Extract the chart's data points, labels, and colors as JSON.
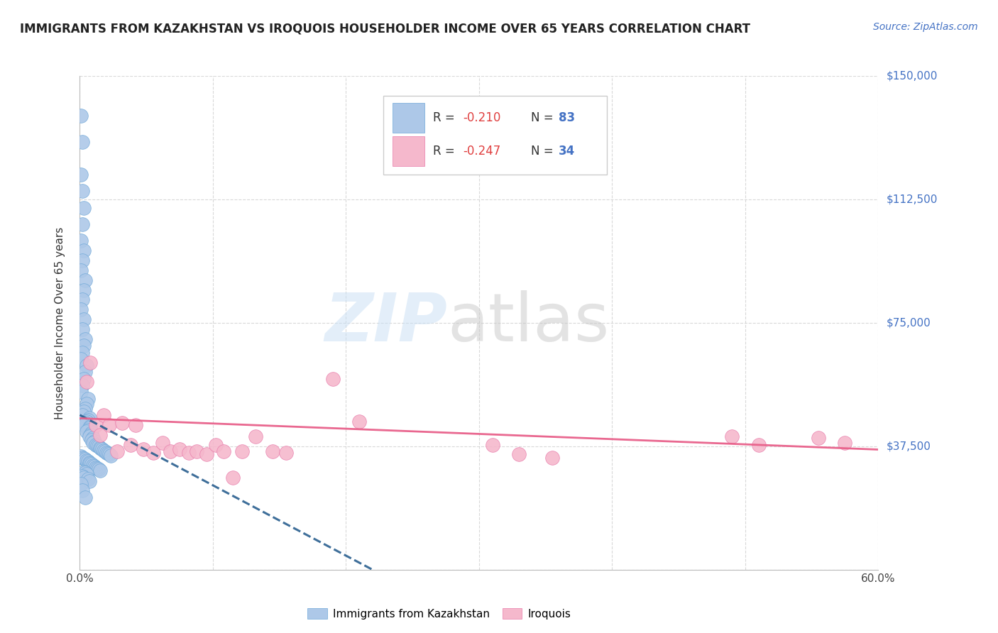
{
  "title": "IMMIGRANTS FROM KAZAKHSTAN VS IROQUOIS HOUSEHOLDER INCOME OVER 65 YEARS CORRELATION CHART",
  "source": "Source: ZipAtlas.com",
  "ylabel": "Householder Income Over 65 years",
  "xlim": [
    0.0,
    0.6
  ],
  "ylim": [
    0,
    150000
  ],
  "yticks": [
    0,
    37500,
    75000,
    112500,
    150000
  ],
  "ytick_labels": [
    "",
    "$37,500",
    "$75,000",
    "$112,500",
    "$150,000"
  ],
  "xticks": [
    0.0,
    0.1,
    0.2,
    0.3,
    0.4,
    0.5,
    0.6
  ],
  "xtick_labels": [
    "0.0%",
    "",
    "",
    "",
    "",
    "",
    "60.0%"
  ],
  "color_blue": "#adc8e8",
  "color_blue_edge": "#6fa8d8",
  "color_pink": "#f5b8cc",
  "color_pink_edge": "#e87aaa",
  "color_trendline_blue": "#2a5f8f",
  "color_trendline_pink": "#e8608a",
  "color_grid": "#d0d0d0",
  "color_title": "#222222",
  "color_source": "#4472c4",
  "color_yticklabel": "#4472c4",
  "color_axis": "#bbbbbb",
  "blue_points_x": [
    0.001,
    0.002,
    0.001,
    0.002,
    0.003,
    0.002,
    0.001,
    0.003,
    0.002,
    0.001,
    0.004,
    0.003,
    0.002,
    0.001,
    0.003,
    0.002,
    0.004,
    0.003,
    0.002,
    0.001,
    0.005,
    0.004,
    0.003,
    0.002,
    0.001,
    0.006,
    0.005,
    0.004,
    0.003,
    0.002,
    0.007,
    0.006,
    0.005,
    0.004,
    0.003,
    0.008,
    0.007,
    0.006,
    0.005,
    0.009,
    0.008,
    0.007,
    0.01,
    0.009,
    0.011,
    0.01,
    0.012,
    0.013,
    0.014,
    0.015,
    0.016,
    0.017,
    0.018,
    0.019,
    0.02,
    0.021,
    0.022,
    0.023,
    0.001,
    0.002,
    0.003,
    0.004,
    0.005,
    0.006,
    0.007,
    0.008,
    0.009,
    0.01,
    0.011,
    0.012,
    0.013,
    0.014,
    0.015,
    0.003,
    0.004,
    0.005,
    0.002,
    0.003,
    0.006,
    0.007,
    0.001,
    0.002,
    0.004
  ],
  "blue_points_y": [
    138000,
    130000,
    120000,
    115000,
    110000,
    105000,
    100000,
    97000,
    94000,
    91000,
    88000,
    85000,
    82000,
    79000,
    76000,
    73000,
    70000,
    68000,
    66000,
    64000,
    62000,
    60000,
    58000,
    56000,
    54000,
    52000,
    50500,
    49000,
    48000,
    47000,
    46000,
    45500,
    45000,
    44500,
    44000,
    43500,
    43000,
    42500,
    42000,
    41500,
    41000,
    40500,
    40000,
    39500,
    39000,
    38500,
    38000,
    37700,
    37400,
    37100,
    36800,
    36500,
    36200,
    35900,
    35600,
    35300,
    35000,
    34700,
    34400,
    34100,
    33800,
    33500,
    33200,
    32900,
    32600,
    32300,
    32000,
    31700,
    31400,
    31100,
    30800,
    30500,
    30200,
    29800,
    29500,
    29000,
    28500,
    28000,
    27500,
    27000,
    26000,
    24000,
    22000
  ],
  "pink_points_x": [
    0.005,
    0.008,
    0.012,
    0.015,
    0.018,
    0.022,
    0.028,
    0.032,
    0.038,
    0.042,
    0.048,
    0.055,
    0.062,
    0.068,
    0.075,
    0.082,
    0.088,
    0.095,
    0.102,
    0.108,
    0.115,
    0.122,
    0.132,
    0.145,
    0.155,
    0.19,
    0.21,
    0.31,
    0.33,
    0.355,
    0.49,
    0.51,
    0.555,
    0.575
  ],
  "pink_points_y": [
    57000,
    63000,
    44000,
    41000,
    47000,
    44000,
    36000,
    44500,
    38000,
    44000,
    36500,
    35500,
    38500,
    36000,
    36500,
    35500,
    36000,
    35000,
    38000,
    36000,
    28000,
    36000,
    40500,
    36000,
    35500,
    58000,
    45000,
    38000,
    35000,
    34000,
    40500,
    38000,
    40000,
    38500
  ]
}
